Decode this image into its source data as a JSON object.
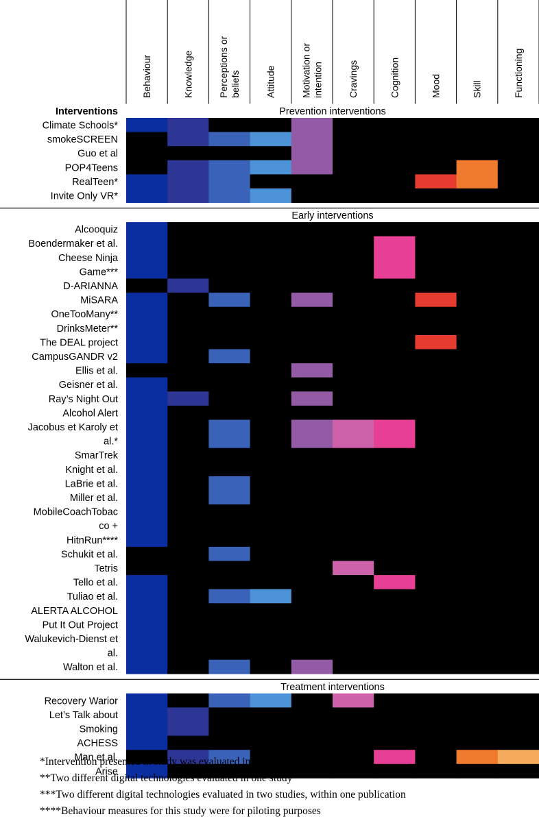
{
  "chart_data": {
    "type": "heatmap",
    "row_header": "Interventions",
    "columns": [
      "Behaviour",
      "Knowledge",
      "Perceptions or beliefs",
      "Attitude",
      "Motivation or intention",
      "Cravings",
      "Cognition",
      "Mood",
      "Skill",
      "Functioning"
    ],
    "column_label_lines": [
      [
        "Behaviour"
      ],
      [
        "Knowledge"
      ],
      [
        "Perceptions or",
        "beliefs"
      ],
      [
        "Attitude"
      ],
      [
        "Motivation or",
        "intention"
      ],
      [
        "Cravings"
      ],
      [
        "Cognition"
      ],
      [
        "Mood"
      ],
      [
        "Skill"
      ],
      [
        "Functioning"
      ]
    ],
    "colors": {
      "Behaviour": "#0a2e9f",
      "Knowledge": "#2d3694",
      "Perceptions or beliefs": "#3a62b8",
      "Attitude": "#4b92d6",
      "Motivation or intention": "#935aa6",
      "Cravings": "#cd62ab",
      "Cognition": "#e83f96",
      "Mood": "#e63c2f",
      "Skill": "#f07a2e",
      "Functioning": "#f5ac5c",
      "empty": "#000000"
    },
    "sections": [
      {
        "title": "Prevention interventions",
        "rows": [
          {
            "label": [
              "Climate Schools*"
            ],
            "cells": [
              1,
              1,
              0,
              0,
              1,
              0,
              0,
              0,
              0,
              0
            ]
          },
          {
            "label": [
              "smokeSCREEN"
            ],
            "cells": [
              0,
              1,
              1,
              1,
              1,
              0,
              0,
              0,
              0,
              0
            ]
          },
          {
            "label": [
              "Guo et al"
            ],
            "cells": [
              0,
              0,
              0,
              0,
              1,
              0,
              0,
              0,
              0,
              0
            ]
          },
          {
            "label": [
              "POP4Teens"
            ],
            "cells": [
              0,
              1,
              1,
              1,
              1,
              0,
              0,
              0,
              1,
              0
            ]
          },
          {
            "label": [
              "RealTeen*"
            ],
            "cells": [
              1,
              1,
              1,
              0,
              0,
              0,
              0,
              1,
              1,
              0
            ]
          },
          {
            "label": [
              "Invite Only VR*"
            ],
            "cells": [
              1,
              1,
              1,
              1,
              0,
              0,
              0,
              0,
              0,
              0
            ]
          }
        ]
      },
      {
        "title": "Early interventions",
        "rows": [
          {
            "label": [
              "Alcooquiz"
            ],
            "cells": [
              1,
              0,
              0,
              0,
              0,
              0,
              0,
              0,
              0,
              0
            ]
          },
          {
            "label": [
              "Boendermaker et al."
            ],
            "cells": [
              1,
              0,
              0,
              0,
              0,
              0,
              1,
              0,
              0,
              0
            ]
          },
          {
            "label": [
              "Cheese Ninja",
              "Game***"
            ],
            "cells": [
              1,
              0,
              0,
              0,
              0,
              0,
              1,
              0,
              0,
              0
            ]
          },
          {
            "label": [
              "D-ARIANNA"
            ],
            "cells": [
              0,
              1,
              0,
              0,
              0,
              0,
              0,
              0,
              0,
              0
            ]
          },
          {
            "label": [
              "MiSARA"
            ],
            "cells": [
              1,
              0,
              1,
              0,
              1,
              0,
              0,
              1,
              0,
              0
            ]
          },
          {
            "label": [
              "OneTooMany**"
            ],
            "cells": [
              1,
              0,
              0,
              0,
              0,
              0,
              0,
              0,
              0,
              0
            ]
          },
          {
            "label": [
              "DrinksMeter**"
            ],
            "cells": [
              1,
              0,
              0,
              0,
              0,
              0,
              0,
              0,
              0,
              0
            ]
          },
          {
            "label": [
              "The DEAL project"
            ],
            "cells": [
              1,
              0,
              0,
              0,
              0,
              0,
              0,
              1,
              0,
              0
            ]
          },
          {
            "label": [
              "CampusGANDR v2"
            ],
            "cells": [
              1,
              0,
              1,
              0,
              0,
              0,
              0,
              0,
              0,
              0
            ]
          },
          {
            "label": [
              "Ellis et al."
            ],
            "cells": [
              0,
              0,
              0,
              0,
              1,
              0,
              0,
              0,
              0,
              0
            ]
          },
          {
            "label": [
              "Geisner et al."
            ],
            "cells": [
              1,
              0,
              0,
              0,
              0,
              0,
              0,
              0,
              0,
              0
            ]
          },
          {
            "label": [
              "Ray’s Night Out"
            ],
            "cells": [
              1,
              1,
              0,
              0,
              1,
              0,
              0,
              0,
              0,
              0
            ]
          },
          {
            "label": [
              "Alcohol Alert"
            ],
            "cells": [
              1,
              0,
              0,
              0,
              0,
              0,
              0,
              0,
              0,
              0
            ]
          },
          {
            "label": [
              "Jacobus et Karoly et",
              "al.*"
            ],
            "cells": [
              1,
              0,
              1,
              0,
              1,
              1,
              1,
              0,
              0,
              0
            ]
          },
          {
            "label": [
              "SmarTrek"
            ],
            "cells": [
              1,
              0,
              0,
              0,
              0,
              0,
              0,
              0,
              0,
              0
            ]
          },
          {
            "label": [
              "Knight et al."
            ],
            "cells": [
              1,
              0,
              0,
              0,
              0,
              0,
              0,
              0,
              0,
              0
            ]
          },
          {
            "label": [
              "LaBrie et al."
            ],
            "cells": [
              1,
              0,
              1,
              0,
              0,
              0,
              0,
              0,
              0,
              0
            ]
          },
          {
            "label": [
              "Miller et al."
            ],
            "cells": [
              1,
              0,
              1,
              0,
              0,
              0,
              0,
              0,
              0,
              0
            ]
          },
          {
            "label": [
              "MobileCoachTobac",
              "co +"
            ],
            "cells": [
              1,
              0,
              0,
              0,
              0,
              0,
              0,
              0,
              0,
              0
            ]
          },
          {
            "label": [
              "HitnRun****"
            ],
            "cells": [
              1,
              0,
              0,
              0,
              0,
              0,
              0,
              0,
              0,
              0
            ]
          },
          {
            "label": [
              "Schukit et al."
            ],
            "cells": [
              0,
              0,
              1,
              0,
              0,
              0,
              0,
              0,
              0,
              0
            ]
          },
          {
            "label": [
              "Tetris"
            ],
            "cells": [
              0,
              0,
              0,
              0,
              0,
              1,
              0,
              0,
              0,
              0
            ]
          },
          {
            "label": [
              "Tello et al."
            ],
            "cells": [
              1,
              0,
              0,
              0,
              0,
              0,
              1,
              0,
              0,
              0
            ]
          },
          {
            "label": [
              "Tuliao et al."
            ],
            "cells": [
              1,
              0,
              1,
              1,
              0,
              0,
              0,
              0,
              0,
              0
            ]
          },
          {
            "label": [
              "ALERTA ALCOHOL"
            ],
            "cells": [
              1,
              0,
              0,
              0,
              0,
              0,
              0,
              0,
              0,
              0
            ]
          },
          {
            "label": [
              "Put It Out Project"
            ],
            "cells": [
              1,
              0,
              0,
              0,
              0,
              0,
              0,
              0,
              0,
              0
            ]
          },
          {
            "label": [
              "Walukevich-Dienst et",
              "al."
            ],
            "cells": [
              1,
              0,
              0,
              0,
              0,
              0,
              0,
              0,
              0,
              0
            ]
          },
          {
            "label": [
              "Walton et al."
            ],
            "cells": [
              1,
              0,
              1,
              0,
              1,
              0,
              0,
              0,
              0,
              0
            ]
          }
        ]
      },
      {
        "title": "Treatment interventions",
        "rows": [
          {
            "label": [
              "Recovery Warior"
            ],
            "cells": [
              1,
              0,
              1,
              1,
              0,
              1,
              0,
              0,
              0,
              0
            ]
          },
          {
            "label": [
              "Let’s Talk about",
              "Smoking"
            ],
            "cells": [
              1,
              1,
              0,
              0,
              0,
              0,
              0,
              0,
              0,
              0
            ]
          },
          {
            "label": [
              "ACHESS"
            ],
            "cells": [
              1,
              0,
              0,
              0,
              0,
              0,
              0,
              0,
              0,
              0
            ]
          },
          {
            "label": [
              "Man et al."
            ],
            "cells": [
              0,
              1,
              1,
              0,
              0,
              0,
              1,
              0,
              1,
              1
            ]
          },
          {
            "label": [
              "Arise"
            ],
            "cells": [
              1,
              0,
              0,
              0,
              0,
              0,
              0,
              0,
              0,
              0
            ]
          }
        ]
      }
    ]
  },
  "footnotes": [
    "*Intervention presented in study was evaluated in multiple studies",
    "**Two different digital technologies evaluated in one study",
    "***Two different digital technologies evaluated in two studies, within one publication",
    "****Behaviour measures for this study were for piloting purposes"
  ]
}
